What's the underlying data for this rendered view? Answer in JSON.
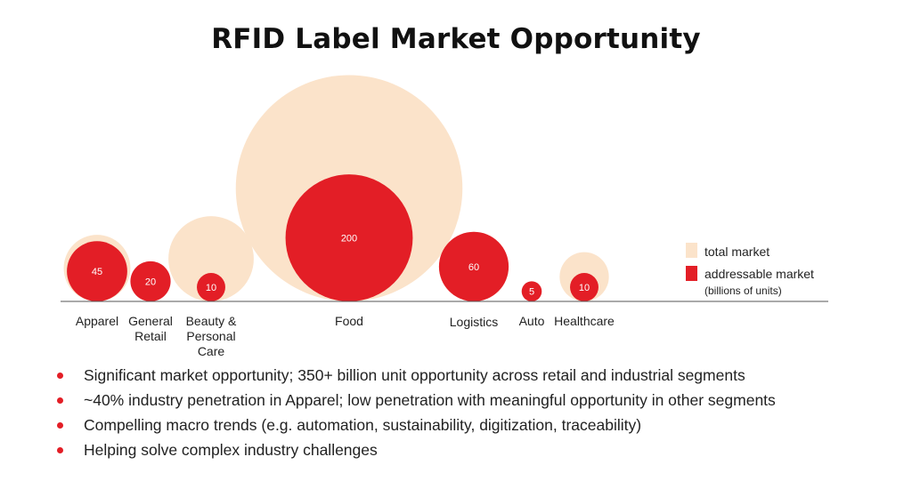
{
  "title": "RFID Label Market Opportunity",
  "colors": {
    "total": "#fbe3ca",
    "addressable": "#e31e26",
    "axis": "#555555"
  },
  "chart_data": {
    "type": "bubble",
    "title": "RFID Label Market Opportunity",
    "categories": [
      "Apparel",
      "General Retail",
      "Beauty & Personal Care",
      "Food",
      "Logistics",
      "Auto",
      "Healthcare"
    ],
    "category_label_lines": [
      [
        "Apparel"
      ],
      [
        "General",
        "Retail"
      ],
      [
        "Beauty &",
        "Personal",
        "Care"
      ],
      [
        "Food"
      ],
      [
        "Logistics"
      ],
      [
        "Auto"
      ],
      [
        "Healthcare"
      ]
    ],
    "series": [
      {
        "name": "total market",
        "values": [
          55,
          17,
          90,
          635,
          60,
          3,
          30
        ]
      },
      {
        "name": "addressable market",
        "values": [
          45,
          20,
          10,
          200,
          60,
          5,
          10
        ]
      }
    ],
    "value_labels": [
      "45",
      "20",
      "10",
      "200",
      "60",
      "5",
      "10"
    ],
    "legend": {
      "placement": "right",
      "note": "(billions of units)"
    }
  },
  "bullets": [
    "Significant market opportunity; 350+ billion unit opportunity across retail and industrial segments",
    "~40% industry penetration in Apparel; low penetration with meaningful opportunity in other segments",
    "Compelling macro trends (e.g. automation, sustainability, digitization, traceability)",
    "Helping solve complex industry challenges"
  ]
}
